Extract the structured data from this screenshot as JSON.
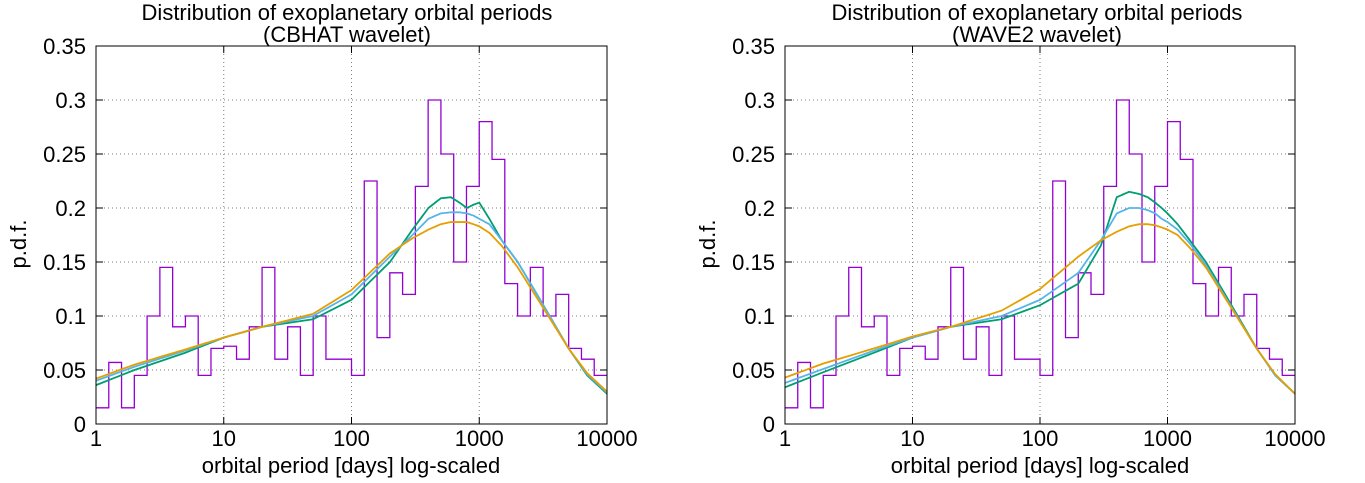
{
  "colors": {
    "histogram": "#9400d3",
    "curve_green": "#009e73",
    "curve_blue": "#56b4e9",
    "curve_orange": "#e69f00"
  },
  "chart_data": [
    {
      "type": "line",
      "title": "Distribution of exoplanetary orbital periods",
      "subtitle": "(CBHAT wavelet)",
      "xlabel": "orbital period [days] log-scaled",
      "ylabel": "p.d.f.",
      "xscale": "log",
      "xlim": [
        1,
        10000
      ],
      "ylim": [
        0,
        0.35
      ],
      "xticks": [
        1,
        10,
        100,
        1000,
        10000
      ],
      "xtick_labels": [
        "1",
        "10",
        "100",
        "1000",
        "10000"
      ],
      "yticks": [
        0,
        0.05,
        0.1,
        0.15,
        0.2,
        0.25,
        0.3,
        0.35
      ],
      "ytick_labels": [
        "0",
        "0.05",
        "0.1",
        "0.15",
        "0.2",
        "0.25",
        "0.3",
        "0.35"
      ],
      "grid": true,
      "histogram": {
        "type": "step",
        "color": "#9400d3",
        "bin_edges_log10": [
          0,
          0.1,
          0.2,
          0.3,
          0.4,
          0.5,
          0.6,
          0.7,
          0.8,
          0.9,
          1.0,
          1.1,
          1.2,
          1.3,
          1.4,
          1.5,
          1.6,
          1.7,
          1.8,
          1.9,
          2.0,
          2.1,
          2.2,
          2.3,
          2.4,
          2.5,
          2.6,
          2.7,
          2.8,
          2.9,
          3.0,
          3.1,
          3.2,
          3.3,
          3.4,
          3.5,
          3.6,
          3.7,
          3.8,
          3.9,
          4.0
        ],
        "values": [
          0.015,
          0.057,
          0.015,
          0.045,
          0.1,
          0.145,
          0.09,
          0.1,
          0.045,
          0.07,
          0.072,
          0.06,
          0.09,
          0.145,
          0.06,
          0.09,
          0.045,
          0.1,
          0.06,
          0.06,
          0.045,
          0.225,
          0.08,
          0.14,
          0.12,
          0.22,
          0.3,
          0.25,
          0.15,
          0.22,
          0.28,
          0.245,
          0.13,
          0.1,
          0.145,
          0.1,
          0.12,
          0.07,
          0.06,
          0.045
        ]
      },
      "series": [
        {
          "color": "#009e73",
          "x": [
            1,
            2,
            5,
            10,
            20,
            50,
            100,
            200,
            300,
            400,
            500,
            600,
            700,
            800,
            900,
            1000,
            1200,
            1500,
            2000,
            3000,
            5000,
            7000,
            10000
          ],
          "y": [
            0.036,
            0.05,
            0.066,
            0.08,
            0.09,
            0.097,
            0.115,
            0.15,
            0.18,
            0.2,
            0.209,
            0.21,
            0.205,
            0.2,
            0.203,
            0.205,
            0.19,
            0.17,
            0.15,
            0.115,
            0.07,
            0.045,
            0.028
          ]
        },
        {
          "color": "#56b4e9",
          "x": [
            1,
            2,
            5,
            10,
            20,
            50,
            100,
            200,
            300,
            400,
            500,
            600,
            700,
            800,
            900,
            1000,
            1200,
            1500,
            2000,
            3000,
            5000,
            7000,
            10000
          ],
          "y": [
            0.04,
            0.053,
            0.068,
            0.08,
            0.09,
            0.1,
            0.12,
            0.155,
            0.175,
            0.19,
            0.195,
            0.196,
            0.196,
            0.195,
            0.193,
            0.19,
            0.185,
            0.17,
            0.15,
            0.115,
            0.07,
            0.046,
            0.029
          ]
        },
        {
          "color": "#e69f00",
          "x": [
            1,
            2,
            5,
            10,
            20,
            50,
            100,
            200,
            300,
            400,
            500,
            600,
            700,
            800,
            900,
            1000,
            1200,
            1500,
            2000,
            3000,
            5000,
            7000,
            10000
          ],
          "y": [
            0.042,
            0.055,
            0.069,
            0.08,
            0.09,
            0.102,
            0.124,
            0.158,
            0.172,
            0.18,
            0.185,
            0.187,
            0.187,
            0.187,
            0.185,
            0.183,
            0.177,
            0.165,
            0.145,
            0.112,
            0.07,
            0.047,
            0.03
          ]
        }
      ]
    },
    {
      "type": "line",
      "title": "Distribution of exoplanetary orbital periods",
      "subtitle": "(WAVE2 wavelet)",
      "xlabel": "orbital period [days] log-scaled",
      "ylabel": "p.d.f.",
      "xscale": "log",
      "xlim": [
        1,
        10000
      ],
      "ylim": [
        0,
        0.35
      ],
      "xticks": [
        1,
        10,
        100,
        1000,
        10000
      ],
      "xtick_labels": [
        "1",
        "10",
        "100",
        "1000",
        "10000"
      ],
      "yticks": [
        0,
        0.05,
        0.1,
        0.15,
        0.2,
        0.25,
        0.3,
        0.35
      ],
      "ytick_labels": [
        "0",
        "0.05",
        "0.1",
        "0.15",
        "0.2",
        "0.25",
        "0.3",
        "0.35"
      ],
      "grid": true,
      "histogram": {
        "type": "step",
        "color": "#9400d3",
        "bin_edges_log10": [
          0,
          0.1,
          0.2,
          0.3,
          0.4,
          0.5,
          0.6,
          0.7,
          0.8,
          0.9,
          1.0,
          1.1,
          1.2,
          1.3,
          1.4,
          1.5,
          1.6,
          1.7,
          1.8,
          1.9,
          2.0,
          2.1,
          2.2,
          2.3,
          2.4,
          2.5,
          2.6,
          2.7,
          2.8,
          2.9,
          3.0,
          3.1,
          3.2,
          3.3,
          3.4,
          3.5,
          3.6,
          3.7,
          3.8,
          3.9,
          4.0
        ],
        "values": [
          0.015,
          0.057,
          0.015,
          0.045,
          0.1,
          0.145,
          0.09,
          0.1,
          0.045,
          0.07,
          0.072,
          0.06,
          0.09,
          0.145,
          0.06,
          0.09,
          0.045,
          0.1,
          0.06,
          0.06,
          0.045,
          0.225,
          0.08,
          0.14,
          0.12,
          0.22,
          0.3,
          0.25,
          0.15,
          0.22,
          0.28,
          0.245,
          0.13,
          0.1,
          0.145,
          0.1,
          0.12,
          0.07,
          0.06,
          0.045
        ]
      },
      "series": [
        {
          "color": "#009e73",
          "x": [
            1,
            2,
            5,
            10,
            20,
            50,
            100,
            200,
            300,
            400,
            500,
            600,
            700,
            800,
            900,
            1000,
            1200,
            1500,
            2000,
            3000,
            5000,
            7000,
            10000
          ],
          "y": [
            0.034,
            0.048,
            0.066,
            0.08,
            0.09,
            0.097,
            0.11,
            0.13,
            0.165,
            0.21,
            0.215,
            0.213,
            0.21,
            0.205,
            0.2,
            0.195,
            0.185,
            0.17,
            0.15,
            0.115,
            0.07,
            0.045,
            0.028
          ]
        },
        {
          "color": "#56b4e9",
          "x": [
            1,
            2,
            5,
            10,
            20,
            50,
            100,
            200,
            300,
            400,
            500,
            600,
            700,
            800,
            900,
            1000,
            1200,
            1500,
            2000,
            3000,
            5000,
            7000,
            10000
          ],
          "y": [
            0.038,
            0.051,
            0.068,
            0.08,
            0.09,
            0.1,
            0.115,
            0.14,
            0.17,
            0.195,
            0.2,
            0.2,
            0.198,
            0.195,
            0.19,
            0.187,
            0.18,
            0.167,
            0.147,
            0.113,
            0.07,
            0.045,
            0.028
          ]
        },
        {
          "color": "#e69f00",
          "x": [
            1,
            2,
            5,
            10,
            20,
            50,
            100,
            200,
            300,
            400,
            500,
            600,
            700,
            800,
            900,
            1000,
            1200,
            1500,
            2000,
            3000,
            5000,
            7000,
            10000
          ],
          "y": [
            0.043,
            0.056,
            0.07,
            0.081,
            0.09,
            0.105,
            0.125,
            0.155,
            0.17,
            0.178,
            0.183,
            0.185,
            0.185,
            0.184,
            0.182,
            0.18,
            0.175,
            0.163,
            0.145,
            0.112,
            0.07,
            0.046,
            0.028
          ]
        }
      ]
    }
  ]
}
